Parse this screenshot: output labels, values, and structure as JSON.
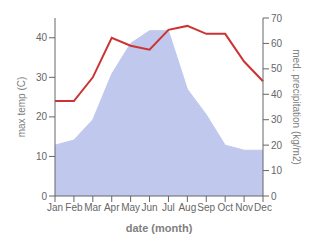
{
  "chart_data": {
    "type": "line",
    "categories": [
      "Jan",
      "Feb",
      "Mar",
      "Apr",
      "May",
      "Jun",
      "Jul",
      "Aug",
      "Sep",
      "Oct",
      "Nov",
      "Dec"
    ],
    "xlabel": "date (month)",
    "ylabel": "max temp (C)",
    "y2label": "med. precipitation (kg/m2)",
    "series": [
      {
        "type": "area",
        "color": "#c0c8ee",
        "axis": "y2",
        "values": [
          20,
          22,
          30,
          48,
          60,
          65,
          65,
          42,
          32,
          20,
          18,
          18
        ]
      },
      {
        "type": "line",
        "color": "#cc3333",
        "values": [
          24,
          24,
          30,
          40,
          38,
          37,
          42,
          43,
          41,
          41,
          34,
          29
        ]
      }
    ],
    "ylim": [
      0,
      45
    ],
    "yticks": [
      0,
      10,
      20,
      30,
      40
    ],
    "y2lim": [
      0,
      70
    ],
    "y2ticks": [
      0,
      10,
      20,
      30,
      40,
      50,
      60,
      70
    ],
    "grid": false
  }
}
